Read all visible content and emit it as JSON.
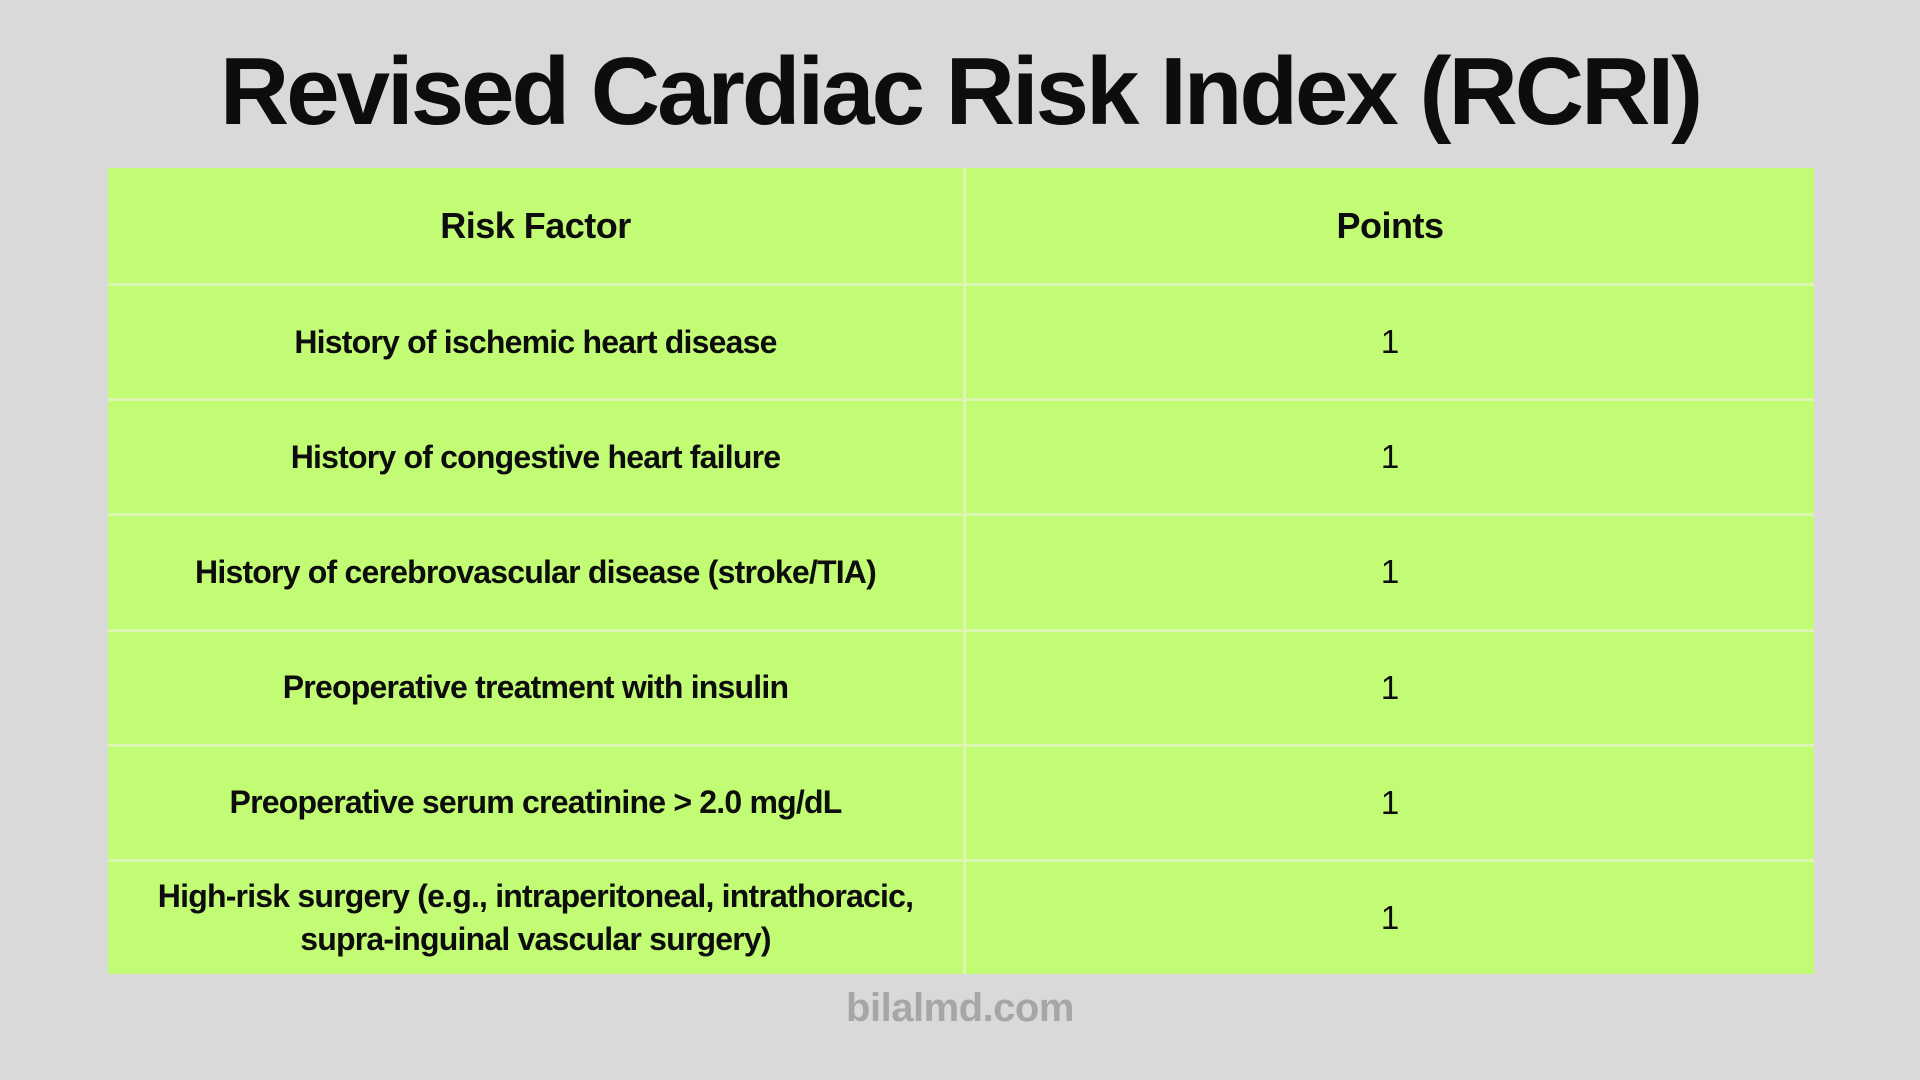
{
  "colors": {
    "background": "#d9d9d9",
    "green": "#c2fc74",
    "divider": "#dcf6b2",
    "text": "#0d0d0d",
    "footer_text": "#a6a6a6"
  },
  "header": {
    "title": "Revised Cardiac Risk Index (RCRI)"
  },
  "table": {
    "columns": [
      "Risk Factor",
      "Points"
    ],
    "rows": [
      {
        "factor": "History of ischemic heart disease",
        "points": "1"
      },
      {
        "factor": "History of congestive heart failure",
        "points": "1"
      },
      {
        "factor": "History of cerebrovascular disease (stroke/TIA)",
        "points": "1"
      },
      {
        "factor": "Preoperative treatment with insulin",
        "points": "1"
      },
      {
        "factor": "Preoperative serum creatinine > 2.0 mg/dL",
        "points": "1"
      },
      {
        "factor": "High-risk surgery (e.g., intraperitoneal, intrathoracic, supra-inguinal vascular surgery)",
        "points": "1"
      }
    ]
  },
  "footer": {
    "watermark": "bilalmd.com"
  }
}
